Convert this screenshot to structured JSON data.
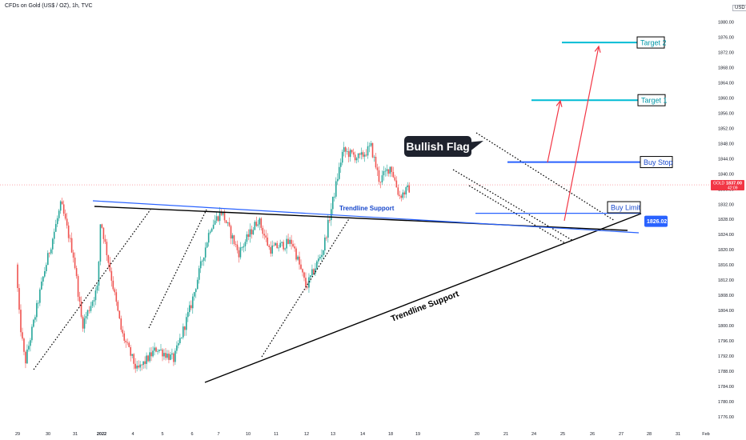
{
  "header": {
    "symbol_title": "CFDs on Gold (US$ / OZ), 1h, TVC",
    "currency": "USD"
  },
  "colors": {
    "up": "#26a69a",
    "down": "#ef5350",
    "blue_line": "#2962ff",
    "cyan_line": "#00bcd4",
    "arrow": "#f23645",
    "black": "#000000",
    "price_badge": "#2962ff",
    "current_price_tag": "#f23645"
  },
  "chart_data": {
    "type": "candlestick",
    "symbol": "GOLD",
    "timeframe": "1h",
    "ylim": [
      1774,
      1884
    ],
    "y_ticks": [
      1776,
      1780,
      1784,
      1788,
      1792,
      1796,
      1800,
      1804,
      1808,
      1812,
      1816,
      1820,
      1824,
      1828,
      1832,
      1836,
      1840,
      1844,
      1848,
      1852,
      1856,
      1860,
      1864,
      1868,
      1872,
      1876,
      1880
    ],
    "x_tick_labels": [
      "29",
      "30",
      "31",
      "2022",
      "4",
      "5",
      "6",
      "7",
      "10",
      "11",
      "12",
      "13",
      "14",
      "18",
      "19",
      "20",
      "21",
      "24",
      "25",
      "26",
      "27",
      "28",
      "31",
      "Feb"
    ],
    "price_path": [
      [
        0,
        1816
      ],
      [
        0.12,
        1802
      ],
      [
        0.32,
        1790
      ],
      [
        1.0,
        1814
      ],
      [
        1.6,
        1832
      ],
      [
        2.05,
        1818
      ],
      [
        2.35,
        1800
      ],
      [
        2.9,
        1810
      ],
      [
        3.0,
        1828
      ],
      [
        3.35,
        1814
      ],
      [
        3.75,
        1798
      ],
      [
        4.3,
        1788
      ],
      [
        5.0,
        1794
      ],
      [
        5.6,
        1791
      ],
      [
        6.2,
        1805
      ],
      [
        6.9,
        1826
      ],
      [
        7.3,
        1830
      ],
      [
        7.9,
        1819
      ],
      [
        8.6,
        1828
      ],
      [
        9.0,
        1820
      ],
      [
        9.8,
        1822
      ],
      [
        10.3,
        1810
      ],
      [
        10.9,
        1820
      ],
      [
        11.6,
        1846
      ],
      [
        12.2,
        1844
      ],
      [
        12.6,
        1847
      ],
      [
        12.9,
        1838
      ],
      [
        13.3,
        1842
      ],
      [
        13.6,
        1834
      ],
      [
        13.95,
        1836
      ]
    ],
    "current_price": {
      "label": "GOLD",
      "value": "1837.00",
      "timer": "42:09"
    },
    "annotations": [
      {
        "text": "Bullish Flag",
        "style": "callout"
      },
      {
        "text": "Target 2",
        "price": 1874.5
      },
      {
        "text": "Target 1",
        "price": 1859.3
      },
      {
        "text": "Buy Stop",
        "price": 1843
      },
      {
        "text": "Buy Limit",
        "price": 1829.5
      },
      {
        "text": "Trendline Support",
        "style": "blue-line-label"
      },
      {
        "text": "Trendline Support",
        "style": "rotated-black"
      }
    ],
    "price_badge": {
      "value": "1826.02"
    }
  }
}
